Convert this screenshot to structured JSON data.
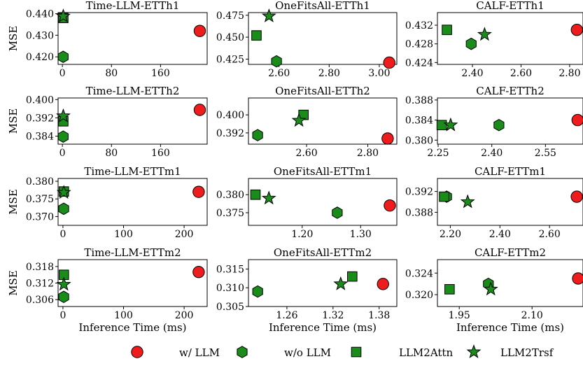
{
  "colors": {
    "llm": "#ee1c1c",
    "green": "#1a8c1a",
    "edge": "#000000"
  },
  "legend": {
    "placement": "bottom-center",
    "items": [
      {
        "label": "w/ LLM",
        "marker": "circle",
        "color": "#ee1c1c"
      },
      {
        "label": "w/o LLM",
        "marker": "hexagon",
        "color": "#1a8c1a"
      },
      {
        "label": "LLM2Attn",
        "marker": "square",
        "color": "#1a8c1a"
      },
      {
        "label": "LLM2Trsf",
        "marker": "star",
        "color": "#1a8c1a"
      }
    ]
  },
  "chart_data": [
    {
      "type": "scatter",
      "title": "Time-LLM-ETTh1",
      "ylabel": "MSE",
      "xlabel": "",
      "xlim": [
        -7,
        236
      ],
      "ylim": [
        0.4165,
        0.4405
      ],
      "xticks": [
        0,
        80,
        160
      ],
      "xtick_labels": [
        "0",
        "80",
        "160"
      ],
      "yticks": [
        0.42,
        0.43,
        0.44
      ],
      "ytick_labels": [
        "0.420",
        "0.430",
        "0.440"
      ],
      "points": {
        "w/ LLM": [
          224,
          0.432
        ],
        "w/o LLM": [
          1.3,
          0.42
        ],
        "LLM2Attn": [
          1.5,
          0.438
        ],
        "LLM2Trsf": [
          1.5,
          0.4388
        ]
      }
    },
    {
      "type": "scatter",
      "title": "OneFitsAll-ETTh1",
      "ylabel": "",
      "xlabel": "",
      "xlim": [
        2.478,
        3.07
      ],
      "ylim": [
        0.419,
        0.478
      ],
      "xticks": [
        2.6,
        2.8,
        3.0
      ],
      "xtick_labels": [
        "2.60",
        "2.80",
        "3.00"
      ],
      "yticks": [
        0.425,
        0.45,
        0.475
      ],
      "ytick_labels": [
        "0.425",
        "0.450",
        "0.475"
      ],
      "points": {
        "w/ LLM": [
          3.04,
          0.421
        ],
        "w/o LLM": [
          2.59,
          0.4225
        ],
        "LLM2Attn": [
          2.51,
          0.452
        ],
        "LLM2Trsf": [
          2.56,
          0.474
        ]
      }
    },
    {
      "type": "scatter",
      "title": "CALF-ETTh1",
      "ylabel": "",
      "xlabel": "",
      "xlim": [
        2.256,
        2.855
      ],
      "ylim": [
        0.4236,
        0.4347
      ],
      "xticks": [
        2.4,
        2.6,
        2.8
      ],
      "xtick_labels": [
        "2.40",
        "2.60",
        "2.80"
      ],
      "yticks": [
        0.424,
        0.428,
        0.432
      ],
      "ytick_labels": [
        "0.424",
        "0.428",
        "0.432"
      ],
      "points": {
        "w/ LLM": [
          2.83,
          0.431
        ],
        "w/o LLM": [
          2.395,
          0.428
        ],
        "LLM2Attn": [
          2.295,
          0.431
        ],
        "LLM2Trsf": [
          2.45,
          0.43
        ]
      }
    },
    {
      "type": "scatter",
      "title": "Time-LLM-ETTh2",
      "ylabel": "MSE",
      "xlabel": "",
      "xlim": [
        -7,
        236
      ],
      "ylim": [
        0.3805,
        0.4007
      ],
      "xticks": [
        0,
        80,
        160
      ],
      "xtick_labels": [
        "0",
        "80",
        "160"
      ],
      "yticks": [
        0.384,
        0.392,
        0.4
      ],
      "ytick_labels": [
        "0.384",
        "0.392",
        "0.400"
      ],
      "points": {
        "w/ LLM": [
          224,
          0.3955
        ],
        "w/o LLM": [
          1.3,
          0.3838
        ],
        "LLM2Attn": [
          1.5,
          0.3905
        ],
        "LLM2Trsf": [
          1.5,
          0.3928
        ]
      }
    },
    {
      "type": "scatter",
      "title": "OneFitsAll-ETTh2",
      "ylabel": "",
      "xlabel": "",
      "xlim": [
        2.41,
        2.895
      ],
      "ylim": [
        0.387,
        0.4075
      ],
      "xticks": [
        2.6,
        2.8
      ],
      "xtick_labels": [
        "2.60",
        "2.80"
      ],
      "yticks": [
        0.392,
        0.4
      ],
      "ytick_labels": [
        "0.392",
        "0.400"
      ],
      "points": {
        "w/ LLM": [
          2.865,
          0.3895
        ],
        "w/o LLM": [
          2.44,
          0.391
        ],
        "LLM2Attn": [
          2.59,
          0.4
        ],
        "LLM2Trsf": [
          2.575,
          0.3975
        ]
      }
    },
    {
      "type": "scatter",
      "title": "CALF-ETTh2",
      "ylabel": "",
      "xlabel": "",
      "xlim": [
        2.248,
        2.655
      ],
      "ylim": [
        0.3792,
        0.3884
      ],
      "xticks": [
        2.25,
        2.4,
        2.55
      ],
      "xtick_labels": [
        "2.25",
        "2.40",
        "2.55"
      ],
      "yticks": [
        0.38,
        0.384,
        0.388
      ],
      "ytick_labels": [
        "0.380",
        "0.384",
        "0.388"
      ],
      "points": {
        "w/ LLM": [
          2.64,
          0.384
        ],
        "w/o LLM": [
          2.42,
          0.383
        ],
        "LLM2Attn": [
          2.26,
          0.383
        ],
        "LLM2Trsf": [
          2.285,
          0.383
        ]
      }
    },
    {
      "type": "scatter",
      "title": "Time-LLM-ETTm1",
      "ylabel": "MSE",
      "xlabel": "",
      "xlim": [
        -8,
        238
      ],
      "ylim": [
        0.3675,
        0.3808
      ],
      "xticks": [
        0,
        100,
        200
      ],
      "xtick_labels": [
        "0",
        "100",
        "200"
      ],
      "yticks": [
        0.37,
        0.375,
        0.38
      ],
      "ytick_labels": [
        "0.370",
        "0.375",
        "0.380"
      ],
      "points": {
        "w/ LLM": [
          224,
          0.377
        ],
        "w/o LLM": [
          1.3,
          0.3722
        ],
        "LLM2Attn": [
          1.5,
          0.3771
        ],
        "LLM2Trsf": [
          1.5,
          0.3768
        ]
      }
    },
    {
      "type": "scatter",
      "title": "OneFitsAll-ETTm1",
      "ylabel": "",
      "xlabel": "",
      "xlim": [
        1.108,
        1.362
      ],
      "ylim": [
        0.3715,
        0.3845
      ],
      "xticks": [
        1.2,
        1.3
      ],
      "xtick_labels": [
        "1.20",
        "1.30"
      ],
      "yticks": [
        0.375,
        0.38
      ],
      "ytick_labels": [
        "0.375",
        "0.380"
      ],
      "points": {
        "w/ LLM": [
          1.35,
          0.377
        ],
        "w/o LLM": [
          1.26,
          0.375
        ],
        "LLM2Attn": [
          1.12,
          0.38
        ],
        "LLM2Trsf": [
          1.143,
          0.379
        ]
      }
    },
    {
      "type": "scatter",
      "title": "CALF-ETTm1",
      "ylabel": "",
      "xlabel": "",
      "xlim": [
        2.148,
        2.735
      ],
      "ylim": [
        0.3855,
        0.3945
      ],
      "xticks": [
        2.2,
        2.4,
        2.6
      ],
      "xtick_labels": [
        "2.20",
        "2.40",
        "2.60"
      ],
      "yticks": [
        0.388,
        0.392
      ],
      "ytick_labels": [
        "0.388",
        "0.392"
      ],
      "points": {
        "w/ LLM": [
          2.71,
          0.391
        ],
        "w/o LLM": [
          2.185,
          0.391
        ],
        "LLM2Attn": [
          2.175,
          0.391
        ],
        "LLM2Trsf": [
          2.27,
          0.39
        ]
      }
    },
    {
      "type": "scatter",
      "title": "Time-LLM-ETTm2",
      "ylabel": "MSE",
      "xlabel": "Inference Time (ms)",
      "xlim": [
        -8,
        238
      ],
      "ylim": [
        0.3035,
        0.3205
      ],
      "xticks": [
        0,
        100,
        200
      ],
      "xtick_labels": [
        "0",
        "100",
        "200"
      ],
      "yticks": [
        0.306,
        0.312,
        0.318
      ],
      "ytick_labels": [
        "0.306",
        "0.312",
        "0.318"
      ],
      "points": {
        "w/ LLM": [
          224,
          0.316
        ],
        "w/o LLM": [
          1.3,
          0.307
        ],
        "LLM2Attn": [
          1.5,
          0.315
        ],
        "LLM2Trsf": [
          1.5,
          0.3115
        ]
      }
    },
    {
      "type": "scatter",
      "title": "OneFitsAll-ETTm2",
      "ylabel": "",
      "xlabel": "Inference Time (ms)",
      "xlim": [
        1.21,
        1.403
      ],
      "ylim": [
        0.305,
        0.3175
      ],
      "xticks": [
        1.26,
        1.32,
        1.38
      ],
      "xtick_labels": [
        "1.26",
        "1.32",
        "1.38"
      ],
      "yticks": [
        0.305,
        0.31,
        0.315
      ],
      "ytick_labels": [
        "0.305",
        "0.310",
        "0.315"
      ],
      "points": {
        "w/ LLM": [
          1.385,
          0.311
        ],
        "w/o LLM": [
          1.222,
          0.309
        ],
        "LLM2Attn": [
          1.345,
          0.313
        ],
        "LLM2Trsf": [
          1.33,
          0.311
        ]
      }
    },
    {
      "type": "scatter",
      "title": "CALF-ETTm2",
      "ylabel": "",
      "xlabel": "Inference Time (ms)",
      "xlim": [
        1.905,
        2.205
      ],
      "ylim": [
        0.3178,
        0.3265
      ],
      "xticks": [
        1.95,
        2.1
      ],
      "xtick_labels": [
        "1.95",
        "2.10"
      ],
      "yticks": [
        0.32,
        0.324
      ],
      "ytick_labels": [
        "0.320",
        "0.324"
      ],
      "points": {
        "w/ LLM": [
          2.195,
          0.323
        ],
        "w/o LLM": [
          2.01,
          0.322
        ],
        "LLM2Attn": [
          1.93,
          0.321
        ],
        "LLM2Trsf": [
          2.015,
          0.321
        ]
      }
    }
  ]
}
